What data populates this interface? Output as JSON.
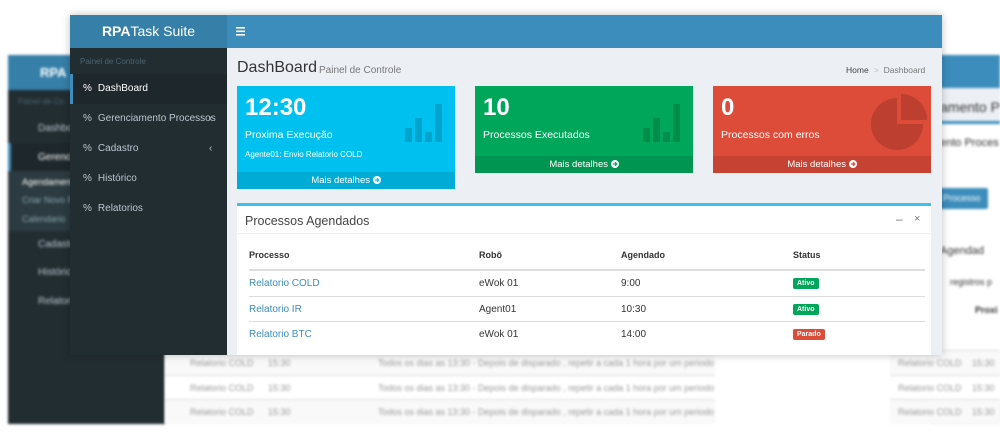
{
  "background": {
    "left": {
      "logo": "RPA",
      "section": "Painel de Co",
      "items": [
        "Dashbo",
        "Gerencia",
        "Cadastr",
        "Históric",
        "Relatori"
      ],
      "subitems": [
        "Agendament",
        "Criar Novo P",
        "Calendario"
      ]
    },
    "right": {
      "title": "amento P",
      "box_title": "ento Proces",
      "button": "Processo",
      "section": "Agendad",
      "filter": "registros p",
      "column": "Proxi",
      "rows": [
        [
          "Relatorio COLD",
          "15:30"
        ],
        [
          "Relatorio COLD",
          "15:30"
        ],
        [
          "Relatorio COLD",
          "15:30"
        ]
      ]
    },
    "table_rows": [
      [
        "Relatorio COLD",
        "15:30",
        "Todos os dias as 13:30 - Depois de disparado , repetir a cada 1 hora por um periodo"
      ],
      [
        "Relatorio COLD",
        "15:30",
        "Todos os dias as 13:30 - Depois de disparado , repetir a cada 1 hora por um periodo"
      ],
      [
        "Relatorio COLD",
        "15:30",
        "Todos os dias as 13:30 - Depois de disparado , repetir a cada 1 hora por um periodo"
      ]
    ]
  },
  "header": {
    "logo_bold": "RPA",
    "logo_rest": "Task Suite"
  },
  "sidebar": {
    "section": "Painel de Controle",
    "items": [
      "DashBoard",
      "Gerenciamento Processos",
      "Cadastro",
      "Histórico",
      "Relatorios"
    ]
  },
  "content": {
    "title": "DashBoard",
    "subtitle": "Painel de Controle",
    "breadcrumb": [
      "Home",
      "Dashboard"
    ]
  },
  "cards": [
    {
      "value": "12:30",
      "label": "Proxima Execução",
      "detail": "Agente01: Envio Relatorio COLD",
      "footer": "Mais detalhes"
    },
    {
      "value": 10,
      "label": "Processos Executados",
      "footer": "Mais detalhes"
    },
    {
      "value": 0,
      "label": "Processos com erros",
      "footer": "Mais detalhes"
    }
  ],
  "table": {
    "title": "Processos Agendados",
    "columns": [
      "Processo",
      "Robô",
      "Agendado",
      "Status"
    ],
    "rows": [
      [
        "Relatorio COLD",
        "eWok 01",
        "9:00",
        "Ativo"
      ],
      [
        "Relatorio IR",
        "Agent01",
        "10:30",
        "Ativo"
      ],
      [
        "Relatorio BTC",
        "eWok 01",
        "14:00",
        "Parado"
      ]
    ]
  }
}
